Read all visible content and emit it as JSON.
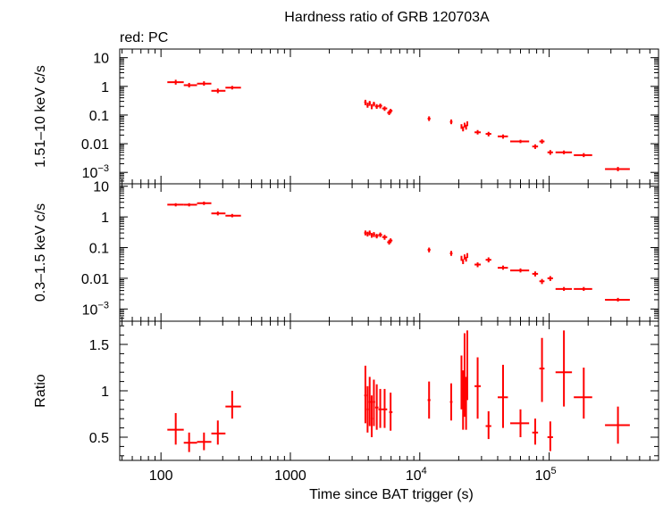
{
  "chart_data": {
    "type": "scatter",
    "title": "Hardness ratio of GRB 120703A",
    "subtitle": "red: PC",
    "xlabel": "Time since BAT trigger (s)",
    "xscale": "log",
    "xlim": [
      48,
      700000
    ],
    "x_ticks": [
      {
        "value": 100,
        "label": "100"
      },
      {
        "value": 1000,
        "label": "1000"
      },
      {
        "value": 10000,
        "label": "10",
        "exp": "4"
      },
      {
        "value": 100000,
        "label": "10",
        "exp": "5"
      }
    ],
    "color": "#ff0000",
    "panels": [
      {
        "name": "hard-band",
        "ylabel": "1.51–10 keV c/s",
        "yscale": "log",
        "ylim": [
          0.0004,
          20
        ],
        "y_ticks": [
          {
            "value": 10,
            "label": "10"
          },
          {
            "value": 1,
            "label": "1"
          },
          {
            "value": 0.1,
            "label": "0.1"
          },
          {
            "value": 0.01,
            "label": "0.01"
          },
          {
            "value": 0.001,
            "label": "10",
            "exp": "−3"
          }
        ],
        "points": [
          {
            "x": 130,
            "y": 1.4,
            "xlo": 112,
            "xhi": 150,
            "ylo": 1.15,
            "yhi": 1.7
          },
          {
            "x": 165,
            "y": 1.1,
            "xlo": 150,
            "xhi": 190,
            "ylo": 0.92,
            "yhi": 1.32
          },
          {
            "x": 215,
            "y": 1.25,
            "xlo": 190,
            "xhi": 245,
            "ylo": 1.05,
            "yhi": 1.5
          },
          {
            "x": 275,
            "y": 0.7,
            "xlo": 245,
            "xhi": 315,
            "ylo": 0.58,
            "yhi": 0.84
          },
          {
            "x": 355,
            "y": 0.9,
            "xlo": 315,
            "xhi": 415,
            "ylo": 0.78,
            "yhi": 1.04
          },
          {
            "x": 3800,
            "y": 0.28,
            "xlo": 3720,
            "xhi": 3880,
            "ylo": 0.22,
            "yhi": 0.34
          },
          {
            "x": 3950,
            "y": 0.22,
            "xlo": 3880,
            "xhi": 4030,
            "ylo": 0.18,
            "yhi": 0.27
          },
          {
            "x": 4100,
            "y": 0.26,
            "xlo": 4030,
            "xhi": 4180,
            "ylo": 0.21,
            "yhi": 0.31
          },
          {
            "x": 4250,
            "y": 0.2,
            "xlo": 4180,
            "xhi": 4330,
            "ylo": 0.16,
            "yhi": 0.24
          },
          {
            "x": 4420,
            "y": 0.24,
            "xlo": 4330,
            "xhi": 4520,
            "ylo": 0.2,
            "yhi": 0.29
          },
          {
            "x": 4650,
            "y": 0.2,
            "xlo": 4520,
            "xhi": 4790,
            "ylo": 0.165,
            "yhi": 0.24
          },
          {
            "x": 4950,
            "y": 0.21,
            "xlo": 4790,
            "xhi": 5120,
            "ylo": 0.17,
            "yhi": 0.25
          },
          {
            "x": 5350,
            "y": 0.17,
            "xlo": 5120,
            "xhi": 5600,
            "ylo": 0.14,
            "yhi": 0.2
          },
          {
            "x": 5800,
            "y": 0.12,
            "xlo": 5600,
            "xhi": 6000,
            "ylo": 0.1,
            "yhi": 0.145
          },
          {
            "x": 5950,
            "y": 0.14,
            "xlo": 5800,
            "xhi": 6150,
            "ylo": 0.115,
            "yhi": 0.165
          },
          {
            "x": 11800,
            "y": 0.075,
            "xlo": 11500,
            "xhi": 12100,
            "ylo": 0.062,
            "yhi": 0.09
          },
          {
            "x": 17500,
            "y": 0.058,
            "xlo": 17100,
            "xhi": 17900,
            "ylo": 0.048,
            "yhi": 0.07
          },
          {
            "x": 21000,
            "y": 0.04,
            "xlo": 20700,
            "xhi": 21300,
            "ylo": 0.033,
            "yhi": 0.048
          },
          {
            "x": 21600,
            "y": 0.033,
            "xlo": 21300,
            "xhi": 21900,
            "ylo": 0.027,
            "yhi": 0.04
          },
          {
            "x": 22200,
            "y": 0.045,
            "xlo": 21900,
            "xhi": 22500,
            "ylo": 0.037,
            "yhi": 0.054
          },
          {
            "x": 22800,
            "y": 0.038,
            "xlo": 22500,
            "xhi": 23100,
            "ylo": 0.031,
            "yhi": 0.046
          },
          {
            "x": 23300,
            "y": 0.05,
            "xlo": 23100,
            "xhi": 23600,
            "ylo": 0.041,
            "yhi": 0.06
          },
          {
            "x": 28000,
            "y": 0.025,
            "xlo": 26500,
            "xhi": 29600,
            "ylo": 0.021,
            "yhi": 0.03
          },
          {
            "x": 34000,
            "y": 0.022,
            "xlo": 32300,
            "xhi": 35700,
            "ylo": 0.018,
            "yhi": 0.026
          },
          {
            "x": 44000,
            "y": 0.018,
            "xlo": 40000,
            "xhi": 48000,
            "ylo": 0.015,
            "yhi": 0.021
          },
          {
            "x": 60000,
            "y": 0.012,
            "xlo": 50000,
            "xhi": 70000,
            "ylo": 0.0105,
            "yhi": 0.0137
          },
          {
            "x": 78000,
            "y": 0.008,
            "xlo": 74000,
            "xhi": 82000,
            "ylo": 0.0066,
            "yhi": 0.0095
          },
          {
            "x": 88000,
            "y": 0.012,
            "xlo": 84000,
            "xhi": 92000,
            "ylo": 0.01,
            "yhi": 0.0142
          },
          {
            "x": 102000,
            "y": 0.005,
            "xlo": 97000,
            "xhi": 107000,
            "ylo": 0.0041,
            "yhi": 0.006
          },
          {
            "x": 130000,
            "y": 0.005,
            "xlo": 112000,
            "xhi": 150000,
            "ylo": 0.0043,
            "yhi": 0.0058
          },
          {
            "x": 185000,
            "y": 0.004,
            "xlo": 155000,
            "xhi": 215000,
            "ylo": 0.0034,
            "yhi": 0.0047
          },
          {
            "x": 340000,
            "y": 0.0013,
            "xlo": 270000,
            "xhi": 420000,
            "ylo": 0.0011,
            "yhi": 0.00155
          }
        ]
      },
      {
        "name": "soft-band",
        "ylabel": "0.3–1.5 keV c/s",
        "yscale": "log",
        "ylim": [
          0.0004,
          12
        ],
        "y_ticks": [
          {
            "value": 10,
            "label": "10"
          },
          {
            "value": 1,
            "label": "1"
          },
          {
            "value": 0.1,
            "label": "0.1"
          },
          {
            "value": 0.01,
            "label": "0.01"
          },
          {
            "value": 0.001,
            "label": "10",
            "exp": "−3"
          }
        ],
        "points": [
          {
            "x": 130,
            "y": 2.5,
            "xlo": 112,
            "xhi": 150,
            "ylo": 2.2,
            "yhi": 2.8
          },
          {
            "x": 165,
            "y": 2.5,
            "xlo": 150,
            "xhi": 190,
            "ylo": 2.2,
            "yhi": 2.8
          },
          {
            "x": 215,
            "y": 2.8,
            "xlo": 190,
            "xhi": 245,
            "ylo": 2.45,
            "yhi": 3.15
          },
          {
            "x": 275,
            "y": 1.3,
            "xlo": 245,
            "xhi": 315,
            "ylo": 1.12,
            "yhi": 1.5
          },
          {
            "x": 355,
            "y": 1.1,
            "xlo": 315,
            "xhi": 415,
            "ylo": 0.97,
            "yhi": 1.25
          },
          {
            "x": 3800,
            "y": 0.3,
            "xlo": 3720,
            "xhi": 3880,
            "ylo": 0.25,
            "yhi": 0.36
          },
          {
            "x": 3950,
            "y": 0.28,
            "xlo": 3880,
            "xhi": 4030,
            "ylo": 0.23,
            "yhi": 0.33
          },
          {
            "x": 4100,
            "y": 0.3,
            "xlo": 4030,
            "xhi": 4180,
            "ylo": 0.25,
            "yhi": 0.36
          },
          {
            "x": 4250,
            "y": 0.25,
            "xlo": 4180,
            "xhi": 4330,
            "ylo": 0.21,
            "yhi": 0.3
          },
          {
            "x": 4420,
            "y": 0.27,
            "xlo": 4330,
            "xhi": 4520,
            "ylo": 0.22,
            "yhi": 0.32
          },
          {
            "x": 4650,
            "y": 0.24,
            "xlo": 4520,
            "xhi": 4790,
            "ylo": 0.2,
            "yhi": 0.28
          },
          {
            "x": 4950,
            "y": 0.26,
            "xlo": 4790,
            "xhi": 5120,
            "ylo": 0.22,
            "yhi": 0.31
          },
          {
            "x": 5350,
            "y": 0.22,
            "xlo": 5120,
            "xhi": 5600,
            "ylo": 0.18,
            "yhi": 0.26
          },
          {
            "x": 5800,
            "y": 0.15,
            "xlo": 5600,
            "xhi": 6000,
            "ylo": 0.125,
            "yhi": 0.18
          },
          {
            "x": 5950,
            "y": 0.17,
            "xlo": 5800,
            "xhi": 6150,
            "ylo": 0.14,
            "yhi": 0.2
          },
          {
            "x": 11800,
            "y": 0.085,
            "xlo": 11500,
            "xhi": 12100,
            "ylo": 0.07,
            "yhi": 0.1
          },
          {
            "x": 17500,
            "y": 0.065,
            "xlo": 17100,
            "xhi": 17900,
            "ylo": 0.054,
            "yhi": 0.078
          },
          {
            "x": 21000,
            "y": 0.045,
            "xlo": 20700,
            "xhi": 21300,
            "ylo": 0.037,
            "yhi": 0.054
          },
          {
            "x": 21600,
            "y": 0.035,
            "xlo": 21300,
            "xhi": 21900,
            "ylo": 0.029,
            "yhi": 0.042
          },
          {
            "x": 22200,
            "y": 0.05,
            "xlo": 21900,
            "xhi": 22500,
            "ylo": 0.041,
            "yhi": 0.06
          },
          {
            "x": 22800,
            "y": 0.042,
            "xlo": 22500,
            "xhi": 23100,
            "ylo": 0.035,
            "yhi": 0.05
          },
          {
            "x": 23300,
            "y": 0.055,
            "xlo": 23100,
            "xhi": 23600,
            "ylo": 0.046,
            "yhi": 0.066
          },
          {
            "x": 28000,
            "y": 0.028,
            "xlo": 26500,
            "xhi": 29600,
            "ylo": 0.023,
            "yhi": 0.033
          },
          {
            "x": 34000,
            "y": 0.04,
            "xlo": 32300,
            "xhi": 35700,
            "ylo": 0.033,
            "yhi": 0.048
          },
          {
            "x": 44000,
            "y": 0.022,
            "xlo": 40000,
            "xhi": 48000,
            "ylo": 0.019,
            "yhi": 0.026
          },
          {
            "x": 60000,
            "y": 0.018,
            "xlo": 50000,
            "xhi": 70000,
            "ylo": 0.0155,
            "yhi": 0.021
          },
          {
            "x": 78000,
            "y": 0.014,
            "xlo": 74000,
            "xhi": 82000,
            "ylo": 0.0115,
            "yhi": 0.0167
          },
          {
            "x": 88000,
            "y": 0.008,
            "xlo": 84000,
            "xhi": 92000,
            "ylo": 0.0065,
            "yhi": 0.0095
          },
          {
            "x": 102000,
            "y": 0.01,
            "xlo": 97000,
            "xhi": 107000,
            "ylo": 0.0082,
            "yhi": 0.0118
          },
          {
            "x": 130000,
            "y": 0.0045,
            "xlo": 112000,
            "xhi": 150000,
            "ylo": 0.0039,
            "yhi": 0.0052
          },
          {
            "x": 185000,
            "y": 0.0045,
            "xlo": 155000,
            "xhi": 215000,
            "ylo": 0.0039,
            "yhi": 0.0052
          },
          {
            "x": 340000,
            "y": 0.002,
            "xlo": 270000,
            "xhi": 420000,
            "ylo": 0.00175,
            "yhi": 0.0023
          }
        ]
      },
      {
        "name": "ratio",
        "ylabel": "Ratio",
        "yscale": "linear",
        "ylim": [
          0.25,
          1.75
        ],
        "y_ticks": [
          {
            "value": 0.5,
            "label": "0.5"
          },
          {
            "value": 1,
            "label": "1"
          },
          {
            "value": 1.5,
            "label": "1.5"
          }
        ],
        "points": [
          {
            "x": 130,
            "y": 0.58,
            "xlo": 112,
            "xhi": 150,
            "ylo": 0.42,
            "yhi": 0.76
          },
          {
            "x": 165,
            "y": 0.44,
            "xlo": 150,
            "xhi": 190,
            "ylo": 0.34,
            "yhi": 0.55
          },
          {
            "x": 215,
            "y": 0.45,
            "xlo": 190,
            "xhi": 245,
            "ylo": 0.36,
            "yhi": 0.55
          },
          {
            "x": 275,
            "y": 0.54,
            "xlo": 245,
            "xhi": 315,
            "ylo": 0.42,
            "yhi": 0.68
          },
          {
            "x": 355,
            "y": 0.83,
            "xlo": 315,
            "xhi": 415,
            "ylo": 0.7,
            "yhi": 1.0
          },
          {
            "x": 3800,
            "y": 0.95,
            "xlo": 3720,
            "xhi": 3880,
            "ylo": 0.65,
            "yhi": 1.27
          },
          {
            "x": 3950,
            "y": 0.8,
            "xlo": 3880,
            "xhi": 4030,
            "ylo": 0.55,
            "yhi": 1.05
          },
          {
            "x": 4100,
            "y": 0.88,
            "xlo": 4030,
            "xhi": 4180,
            "ylo": 0.62,
            "yhi": 1.15
          },
          {
            "x": 4250,
            "y": 0.7,
            "xlo": 4180,
            "xhi": 4330,
            "ylo": 0.5,
            "yhi": 0.95
          },
          {
            "x": 4420,
            "y": 0.88,
            "xlo": 4330,
            "xhi": 4520,
            "ylo": 0.62,
            "yhi": 1.12
          },
          {
            "x": 4650,
            "y": 0.82,
            "xlo": 4520,
            "xhi": 4790,
            "ylo": 0.58,
            "yhi": 1.07
          },
          {
            "x": 4950,
            "y": 0.8,
            "xlo": 4790,
            "xhi": 5120,
            "ylo": 0.6,
            "yhi": 1.02
          },
          {
            "x": 5350,
            "y": 0.8,
            "xlo": 5120,
            "xhi": 5600,
            "ylo": 0.6,
            "yhi": 1.02
          },
          {
            "x": 5950,
            "y": 0.77,
            "xlo": 5800,
            "xhi": 6150,
            "ylo": 0.57,
            "yhi": 0.98
          },
          {
            "x": 11800,
            "y": 0.9,
            "xlo": 11500,
            "xhi": 12100,
            "ylo": 0.7,
            "yhi": 1.1
          },
          {
            "x": 17500,
            "y": 0.88,
            "xlo": 17100,
            "xhi": 17900,
            "ylo": 0.68,
            "yhi": 1.08
          },
          {
            "x": 21000,
            "y": 1.02,
            "xlo": 20700,
            "xhi": 21300,
            "ylo": 0.8,
            "yhi": 1.38
          },
          {
            "x": 21600,
            "y": 0.9,
            "xlo": 21300,
            "xhi": 21900,
            "ylo": 0.58,
            "yhi": 1.22
          },
          {
            "x": 22200,
            "y": 1.1,
            "xlo": 21900,
            "xhi": 22500,
            "ylo": 0.72,
            "yhi": 1.62
          },
          {
            "x": 22800,
            "y": 0.85,
            "xlo": 22500,
            "xhi": 23100,
            "ylo": 0.58,
            "yhi": 1.15
          },
          {
            "x": 23300,
            "y": 1.3,
            "xlo": 23100,
            "xhi": 23600,
            "ylo": 0.9,
            "yhi": 1.65
          },
          {
            "x": 28000,
            "y": 1.05,
            "xlo": 26500,
            "xhi": 29600,
            "ylo": 0.7,
            "yhi": 1.36
          },
          {
            "x": 34000,
            "y": 0.62,
            "xlo": 32300,
            "xhi": 35700,
            "ylo": 0.48,
            "yhi": 0.78
          },
          {
            "x": 44000,
            "y": 0.93,
            "xlo": 40000,
            "xhi": 48000,
            "ylo": 0.6,
            "yhi": 1.28
          },
          {
            "x": 60000,
            "y": 0.65,
            "xlo": 50000,
            "xhi": 70000,
            "ylo": 0.5,
            "yhi": 0.8
          },
          {
            "x": 78000,
            "y": 0.55,
            "xlo": 74000,
            "xhi": 82000,
            "ylo": 0.42,
            "yhi": 0.7
          },
          {
            "x": 88000,
            "y": 1.24,
            "xlo": 84000,
            "xhi": 92000,
            "ylo": 0.88,
            "yhi": 1.57
          },
          {
            "x": 102000,
            "y": 0.5,
            "xlo": 97000,
            "xhi": 107000,
            "ylo": 0.35,
            "yhi": 0.67
          },
          {
            "x": 130000,
            "y": 1.2,
            "xlo": 112000,
            "xhi": 150000,
            "ylo": 0.83,
            "yhi": 1.65
          },
          {
            "x": 185000,
            "y": 0.93,
            "xlo": 155000,
            "xhi": 215000,
            "ylo": 0.7,
            "yhi": 1.25
          },
          {
            "x": 340000,
            "y": 0.63,
            "xlo": 270000,
            "xhi": 420000,
            "ylo": 0.43,
            "yhi": 0.83
          }
        ]
      }
    ]
  }
}
